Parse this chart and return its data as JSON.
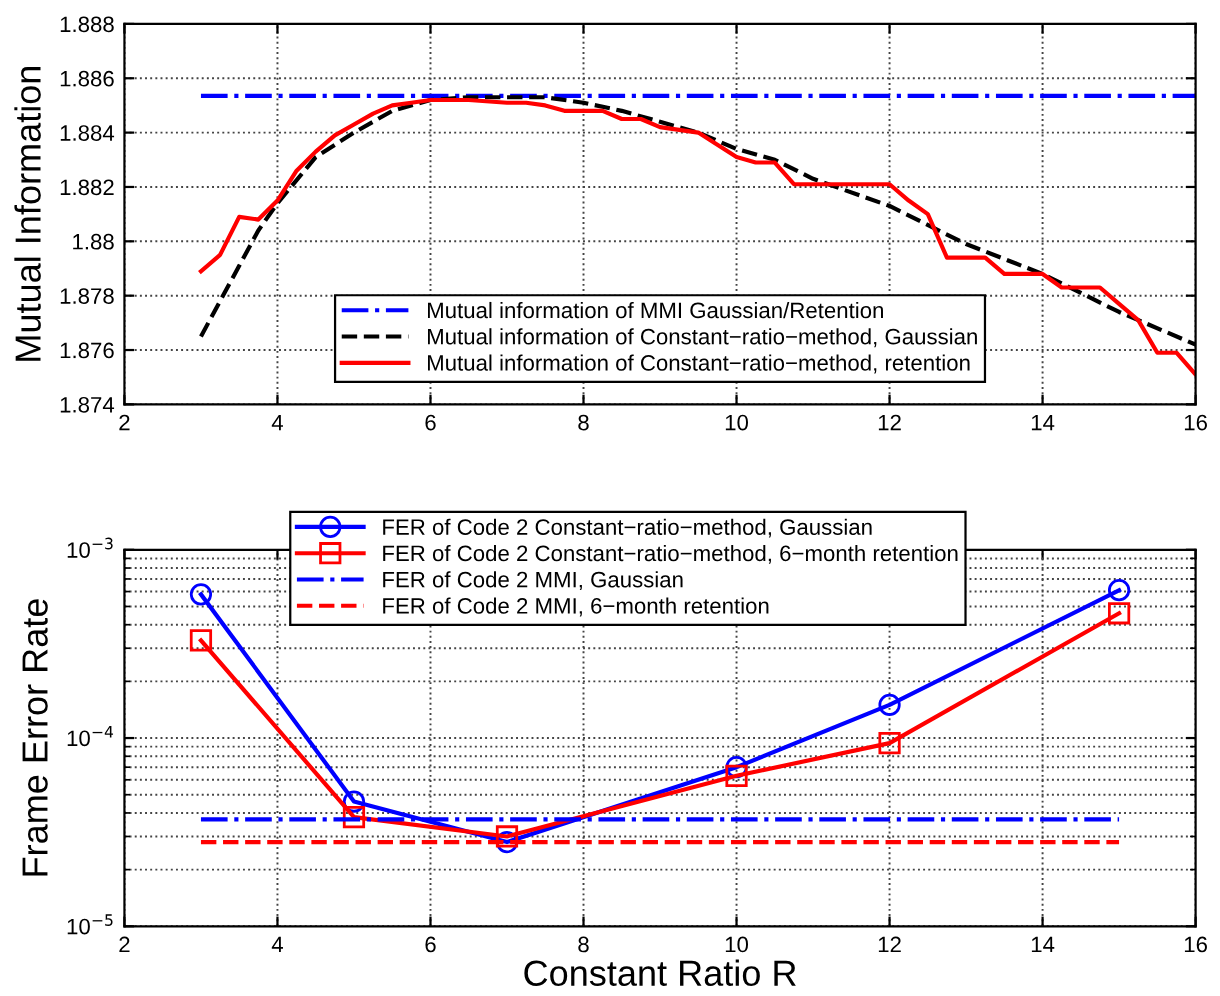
{
  "chart_data": [
    {
      "type": "line",
      "ylabel": "Mutual Information",
      "xlim": [
        2,
        16
      ],
      "xticks": [
        2,
        4,
        6,
        8,
        10,
        12,
        14,
        16
      ],
      "ylim": [
        1.874,
        1.888
      ],
      "yticks": [
        1.874,
        1.876,
        1.878,
        1.88,
        1.882,
        1.884,
        1.886,
        1.888
      ],
      "grid": true,
      "legend": "bottom",
      "series": [
        {
          "name": "Mutual information of MMI Gaussian/Retention",
          "color": "#0000ff",
          "line_style": "dashdot",
          "x": [
            3,
            16
          ],
          "values": [
            1.88535,
            1.88535
          ]
        },
        {
          "name": "Mutual information of Constant−ratio−method, Gaussian",
          "color": "#000000",
          "line_style": "dashed",
          "x": [
            3,
            3.25,
            3.5,
            3.75,
            4,
            4.5,
            5,
            5.5,
            6,
            6.5,
            7,
            7.5,
            8,
            8.5,
            9,
            9.5,
            10,
            10.5,
            11,
            12,
            13,
            14,
            15,
            16
          ],
          "values": [
            1.8765,
            1.8778,
            1.8791,
            1.8804,
            1.8814,
            1.8831,
            1.884,
            1.8848,
            1.8852,
            1.8853,
            1.8853,
            1.8853,
            1.8851,
            1.8848,
            1.8844,
            1.884,
            1.8834,
            1.883,
            1.8823,
            1.8813,
            1.8799,
            1.8788,
            1.8774,
            1.8762
          ]
        },
        {
          "name": "Mutual information of Constant−ratio−method, retention",
          "color": "#ff0000",
          "line_style": "solid",
          "x": [
            3,
            3.25,
            3.5,
            3.75,
            4,
            4.25,
            4.5,
            4.75,
            5,
            5.25,
            5.5,
            5.75,
            6,
            6.5,
            7,
            7.25,
            7.5,
            7.75,
            8,
            8.25,
            8.5,
            8.75,
            9,
            9.5,
            10,
            10.25,
            10.5,
            10.75,
            11,
            12,
            12.25,
            12.5,
            12.75,
            13,
            13.25,
            13.5,
            14,
            14.25,
            14.75,
            15,
            15.25,
            15.5,
            15.75,
            16
          ],
          "values": [
            1.8789,
            1.8795,
            1.8809,
            1.8808,
            1.8815,
            1.8826,
            1.8833,
            1.8839,
            1.8843,
            1.8847,
            1.885,
            1.8851,
            1.8852,
            1.8852,
            1.8851,
            1.8851,
            1.885,
            1.8848,
            1.8848,
            1.8848,
            1.8845,
            1.8845,
            1.8842,
            1.884,
            1.8831,
            1.8829,
            1.8829,
            1.8821,
            1.8821,
            1.8821,
            1.8815,
            1.881,
            1.8794,
            1.8794,
            1.8794,
            1.8788,
            1.8788,
            1.8783,
            1.8783,
            1.8777,
            1.8771,
            1.8759,
            1.8759,
            1.8751
          ]
        }
      ]
    },
    {
      "type": "line",
      "xlabel": "Constant Ratio R",
      "ylabel": "Frame Error Rate",
      "log": "y",
      "xlim": [
        2,
        16
      ],
      "xticks": [
        2,
        4,
        6,
        8,
        10,
        12,
        14,
        16
      ],
      "ylim": [
        1e-05,
        0.001
      ],
      "yticks": [
        {
          "value": 1e-05,
          "label": "10$^{−5}$"
        },
        {
          "value": 0.0001,
          "label": "10$^{−4}$"
        },
        {
          "value": 0.001,
          "label": "10$^{−3}$"
        }
      ],
      "grid": true,
      "legend": "top",
      "series": [
        {
          "name": "FER of Code 2 Constant−ratio−method, Gaussian",
          "color": "#0000ff",
          "marker": "circle",
          "line_style": "solid",
          "x": [
            3,
            5,
            7,
            10,
            12,
            15
          ],
          "values": [
            0.00058,
            4.6e-05,
            2.8e-05,
            7e-05,
            0.00015,
            0.00061
          ]
        },
        {
          "name": "FER of Code 2 Constant−ratio−method, 6−month retention",
          "color": "#ff0000",
          "marker": "square",
          "line_style": "solid",
          "x": [
            3,
            5,
            7,
            10,
            12,
            15
          ],
          "values": [
            0.00033,
            3.8e-05,
            3e-05,
            6.3e-05,
            9.4e-05,
            0.00046
          ]
        },
        {
          "name": "FER of Code 2 MMI, Gaussian",
          "color": "#0000ff",
          "line_style": "dashdot",
          "x": [
            3,
            15
          ],
          "values": [
            3.7e-05,
            3.7e-05
          ]
        },
        {
          "name": "FER of Code 2 MMI, 6−month retention",
          "color": "#ff0000",
          "line_style": "dashed",
          "x": [
            3,
            15
          ],
          "values": [
            2.8e-05,
            2.8e-05
          ]
        }
      ]
    }
  ]
}
